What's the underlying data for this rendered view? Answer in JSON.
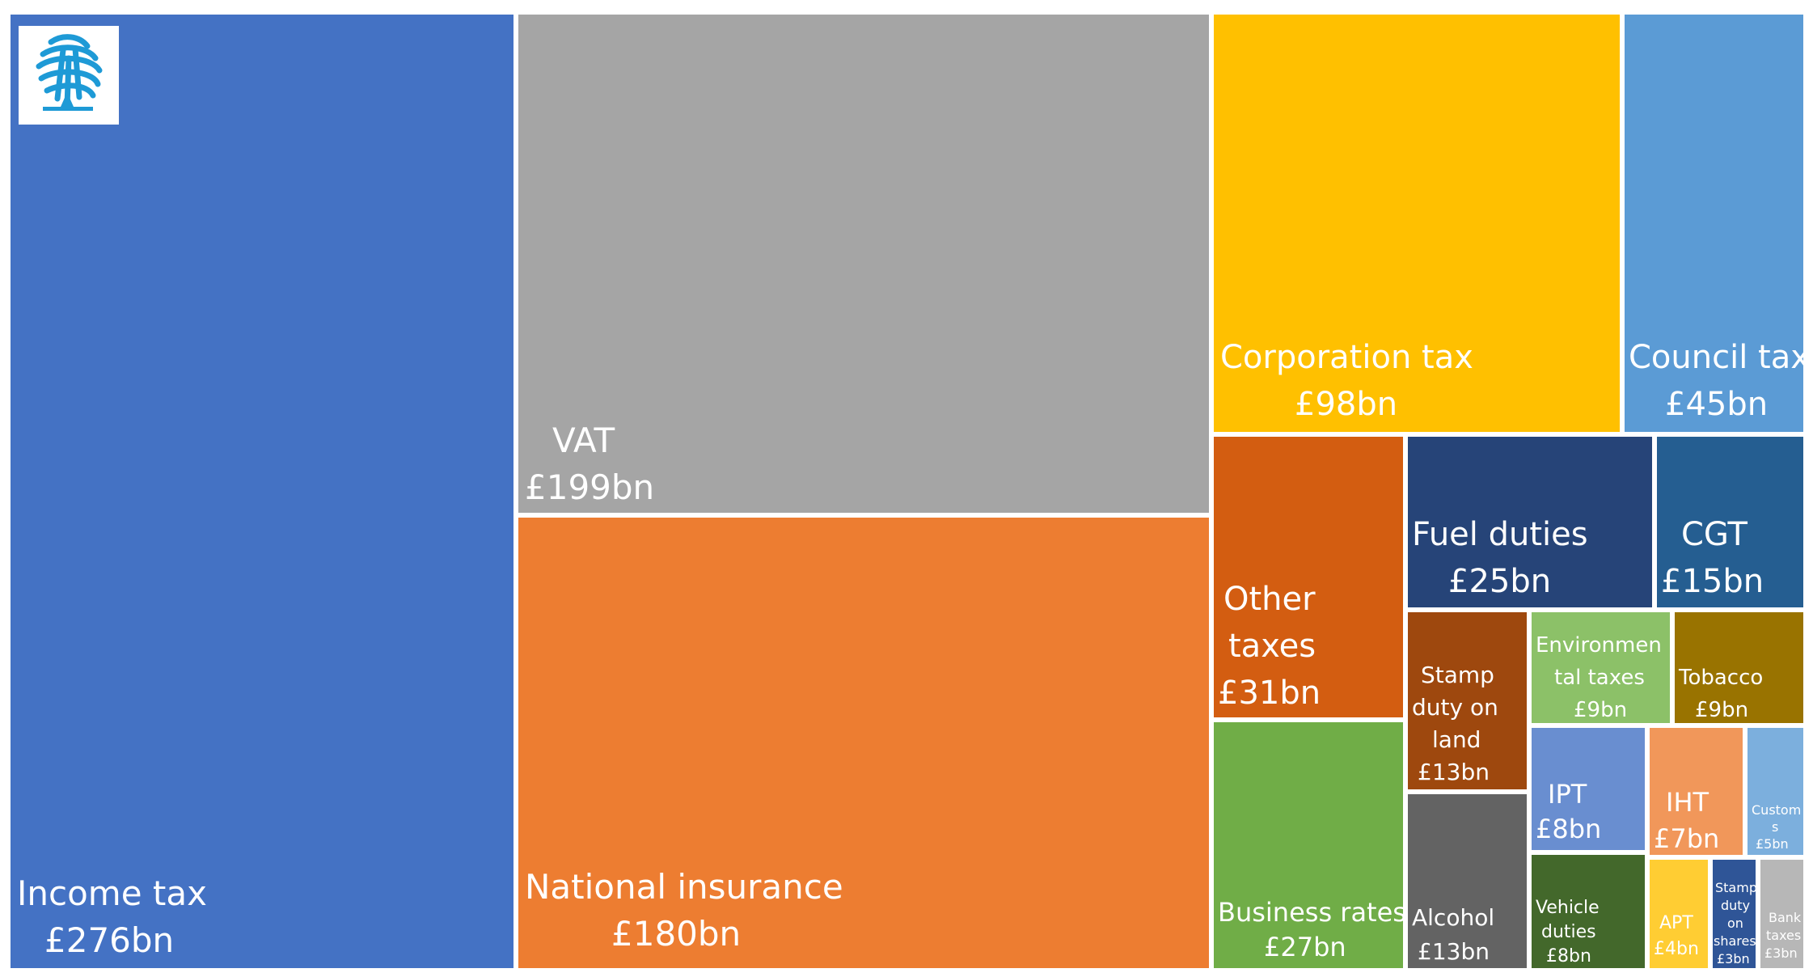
{
  "chart_data": {
    "type": "treemap",
    "unit": "£bn",
    "items": [
      {
        "label": "Income tax",
        "value_label": "£276bn",
        "value": 276,
        "color": "#4472C4"
      },
      {
        "label": "VAT",
        "value_label": "£199bn",
        "value": 199,
        "color": "#A5A5A5"
      },
      {
        "label": "National insurance",
        "value_label": "£180bn",
        "value": 180,
        "color": "#ED7D31"
      },
      {
        "label": "Corporation tax",
        "value_label": "£98bn",
        "value": 98,
        "color": "#FFC000"
      },
      {
        "label": "Council tax",
        "value_label": "£45bn",
        "value": 45,
        "color": "#5B9BD5"
      },
      {
        "label": "Other taxes",
        "value_label": "£31bn",
        "value": 31,
        "color": "#D35D11"
      },
      {
        "label": "Fuel duties",
        "value_label": "£25bn",
        "value": 25,
        "color": "#264478"
      },
      {
        "label": "CGT",
        "value_label": "£15bn",
        "value": 15,
        "color": "#255E91"
      },
      {
        "label": "Business rates",
        "value_label": "£27bn",
        "value": 27,
        "color": "#70AD47"
      },
      {
        "label": "Stamp duty on land",
        "value_label": "£13bn",
        "value": 13,
        "color": "#9E480E"
      },
      {
        "label": "Environmental taxes",
        "value_label": "£9bn",
        "value": 9,
        "color": "#8CC168"
      },
      {
        "label": "Tobacco",
        "value_label": "£9bn",
        "value": 9,
        "color": "#997300"
      },
      {
        "label": "Alcohol",
        "value_label": "£13bn",
        "value": 13,
        "color": "#636363"
      },
      {
        "label": "IPT",
        "value_label": "£8bn",
        "value": 8,
        "color": "#698ED0"
      },
      {
        "label": "IHT",
        "value_label": "£7bn",
        "value": 7,
        "color": "#F1975A"
      },
      {
        "label": "Customs",
        "value_label": "£5bn",
        "value": 5,
        "color": "#7CAFDD"
      },
      {
        "label": "Vehicle duties",
        "value_label": "£8bn",
        "value": 8,
        "color": "#43682B"
      },
      {
        "label": "APT",
        "value_label": "£4bn",
        "value": 4,
        "color": "#FFCD33"
      },
      {
        "label": "Stamp duty on shares",
        "value_label": "£3bn",
        "value": 3,
        "color": "#2F5597"
      },
      {
        "label": "Bank taxes",
        "value_label": "£3bn",
        "value": 3,
        "color": "#B7B7B7"
      }
    ]
  },
  "logo": {
    "icon": "tree-logo-icon",
    "color": "#1E9AD6"
  }
}
